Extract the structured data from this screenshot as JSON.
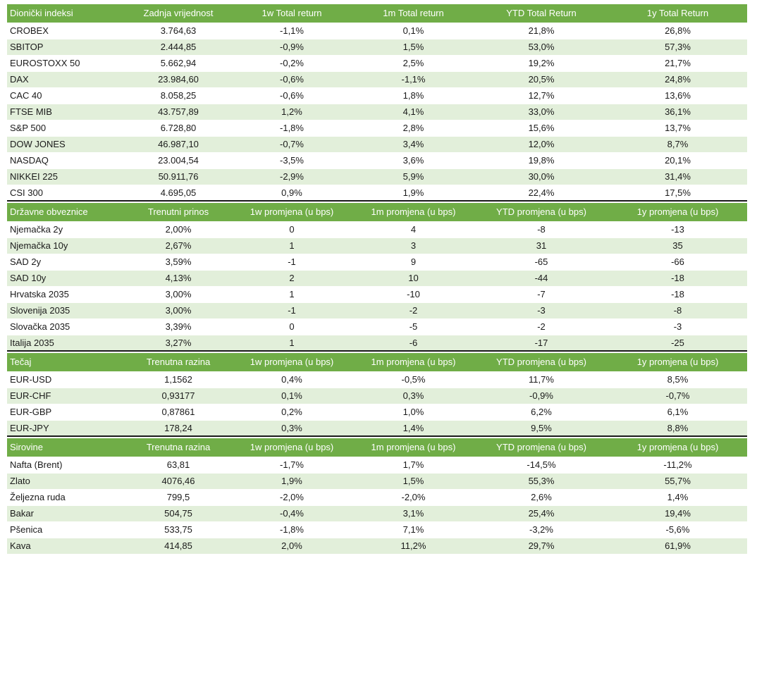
{
  "sections": [
    {
      "header": [
        "Dionički indeksi",
        "Zadnja vrijednost",
        "1w Total return",
        "1m Total return",
        "YTD Total Return",
        "1y Total Return"
      ],
      "rows": [
        [
          "CROBEX",
          "3.764,63",
          "-1,1%",
          "0,1%",
          "21,8%",
          "26,8%"
        ],
        [
          "SBITOP",
          "2.444,85",
          "-0,9%",
          "1,5%",
          "53,0%",
          "57,3%"
        ],
        [
          "EUROSTOXX 50",
          "5.662,94",
          "-0,2%",
          "2,5%",
          "19,2%",
          "21,7%"
        ],
        [
          "DAX",
          "23.984,60",
          "-0,6%",
          "-1,1%",
          "20,5%",
          "24,8%"
        ],
        [
          "CAC 40",
          "8.058,25",
          "-0,6%",
          "1,8%",
          "12,7%",
          "13,6%"
        ],
        [
          "FTSE MIB",
          "43.757,89",
          "1,2%",
          "4,1%",
          "33,0%",
          "36,1%"
        ],
        [
          "S&P 500",
          "6.728,80",
          "-1,8%",
          "2,8%",
          "15,6%",
          "13,7%"
        ],
        [
          "DOW JONES",
          "46.987,10",
          "-0,7%",
          "3,4%",
          "12,0%",
          "8,7%"
        ],
        [
          "NASDAQ",
          "23.004,54",
          "-3,5%",
          "3,6%",
          "19,8%",
          "20,1%"
        ],
        [
          "NIKKEI 225",
          "50.911,76",
          "-2,9%",
          "5,9%",
          "30,0%",
          "31,4%"
        ],
        [
          "CSI 300",
          "4.695,05",
          "0,9%",
          "1,9%",
          "22,4%",
          "17,5%"
        ]
      ]
    },
    {
      "header": [
        "Državne obveznice",
        "Trenutni prinos",
        "1w promjena (u bps)",
        "1m promjena (u bps)",
        "YTD promjena (u bps)",
        "1y promjena (u bps)"
      ],
      "rows": [
        [
          "Njemačka 2y",
          "2,00%",
          "0",
          "4",
          "-8",
          "-13"
        ],
        [
          "Njemačka 10y",
          "2,67%",
          "1",
          "3",
          "31",
          "35"
        ],
        [
          "SAD 2y",
          "3,59%",
          "-1",
          "9",
          "-65",
          "-66"
        ],
        [
          "SAD 10y",
          "4,13%",
          "2",
          "10",
          "-44",
          "-18"
        ],
        [
          "Hrvatska 2035",
          "3,00%",
          "1",
          "-10",
          "-7",
          "-18"
        ],
        [
          "Slovenija 2035",
          "3,00%",
          "-1",
          "-2",
          "-3",
          "-8"
        ],
        [
          "Slovačka 2035",
          "3,39%",
          "0",
          "-5",
          "-2",
          "-3"
        ],
        [
          "Italija 2035",
          "3,27%",
          "1",
          "-6",
          "-17",
          "-25"
        ]
      ]
    },
    {
      "header": [
        "Tečaj",
        "Trenutna razina",
        "1w promjena (u bps)",
        "1m promjena (u bps)",
        "YTD promjena (u bps)",
        "1y promjena (u bps)"
      ],
      "rows": [
        [
          "EUR-USD",
          "1,1562",
          "0,4%",
          "-0,5%",
          "11,7%",
          "8,5%"
        ],
        [
          "EUR-CHF",
          "0,93177",
          "0,1%",
          "0,3%",
          "-0,9%",
          "-0,7%"
        ],
        [
          "EUR-GBP",
          "0,87861",
          "0,2%",
          "1,0%",
          "6,2%",
          "6,1%"
        ],
        [
          "EUR-JPY",
          "178,24",
          "0,3%",
          "1,4%",
          "9,5%",
          "8,8%"
        ]
      ]
    },
    {
      "header": [
        "Sirovine",
        "Trenutna razina",
        "1w promjena (u bps)",
        "1m promjena (u bps)",
        "YTD promjena (u bps)",
        "1y promjena (u bps)"
      ],
      "rows": [
        [
          "Nafta (Brent)",
          "63,81",
          "-1,7%",
          "1,7%",
          "-14,5%",
          "-11,2%"
        ],
        [
          "Zlato",
          "4076,46",
          "1,9%",
          "1,5%",
          "55,3%",
          "55,7%"
        ],
        [
          "Željezna ruda",
          "799,5",
          "-2,0%",
          "-2,0%",
          "2,6%",
          "1,4%"
        ],
        [
          "Bakar",
          "504,75",
          "-0,4%",
          "3,1%",
          "25,4%",
          "19,4%"
        ],
        [
          "Pšenica",
          "533,75",
          "-1,8%",
          "7,1%",
          "-3,2%",
          "-5,6%"
        ],
        [
          "Kava",
          "414,85",
          "2,0%",
          "11,2%",
          "29,7%",
          "61,9%"
        ]
      ]
    }
  ]
}
